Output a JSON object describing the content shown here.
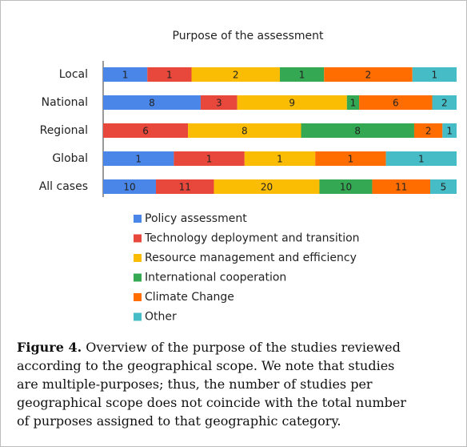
{
  "chart_data": {
    "type": "bar",
    "orientation": "horizontal",
    "stacked": "percent",
    "title": "Purpose of the assessment",
    "categories": [
      "Local",
      "National",
      "Regional",
      "Global",
      "All cases"
    ],
    "series": [
      {
        "name": "Policy assessment",
        "color": "#4a86e8",
        "values": [
          1,
          8,
          null,
          1,
          10
        ]
      },
      {
        "name": "Technology deployment and transition",
        "color": "#e8483b",
        "values": [
          1,
          3,
          6,
          1,
          11
        ]
      },
      {
        "name": "Resource management and efficiency",
        "color": "#fbbc04",
        "values": [
          2,
          9,
          8,
          1,
          20
        ]
      },
      {
        "name": "International cooperation",
        "color": "#34a853",
        "values": [
          1,
          1,
          8,
          null,
          10
        ]
      },
      {
        "name": "Climate Change",
        "color": "#ff6d01",
        "values": [
          2,
          6,
          2,
          1,
          11
        ]
      },
      {
        "name": "Other",
        "color": "#46bdc6",
        "values": [
          1,
          2,
          1,
          1,
          5
        ]
      }
    ],
    "legend": "bottom"
  },
  "caption": {
    "label": "Figure 4.",
    "text": "Overview of the purpose of the studies reviewed according to the geographical scope. We note that studies are multiple-purposes; thus, the number of studies per geographical scope does not coincide with the total number of purposes assigned to that geographic category."
  }
}
